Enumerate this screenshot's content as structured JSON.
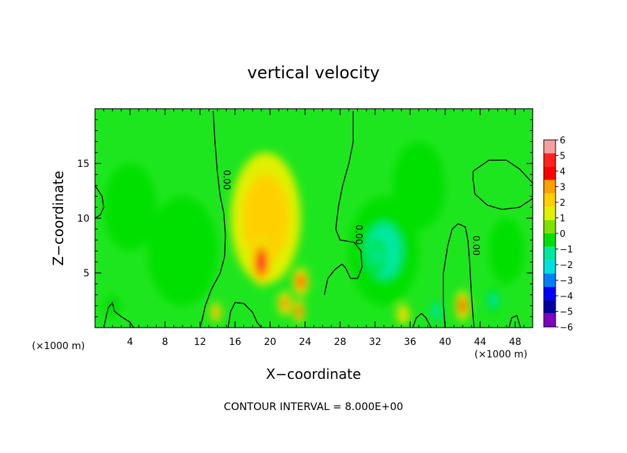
{
  "chart_data": {
    "type": "heatmap",
    "title": "vertical velocity",
    "xlabel": "X−coordinate",
    "ylabel": "Z−coordinate",
    "x_units_left": "(×1000 m)",
    "x_units_right": "(×1000 m)",
    "footer": "CONTOUR INTERVAL = 8.000E+00",
    "xlim": [
      0,
      50
    ],
    "ylim": [
      0,
      20
    ],
    "x_ticks": [
      4,
      8,
      12,
      16,
      20,
      24,
      28,
      32,
      36,
      40,
      44,
      48
    ],
    "x_tick_labels": [
      "4",
      "8",
      "12",
      "16",
      "20",
      "24",
      "28",
      "32",
      "36",
      "40",
      "44",
      "48"
    ],
    "y_ticks": [
      5,
      10,
      15
    ],
    "y_tick_labels": [
      "5",
      "10",
      "15"
    ],
    "contour_label": "0.00",
    "colorbar": {
      "levels": [
        6,
        5,
        4,
        3,
        2,
        1,
        0,
        -1,
        -2,
        -3,
        -4,
        -5,
        -6
      ],
      "labels": [
        "6",
        "5",
        "4",
        "3",
        "2",
        "1",
        "0",
        "−1",
        "−2",
        "−3",
        "−4",
        "−5",
        "−6"
      ],
      "colors": [
        "#f4a0a0",
        "#ff2020",
        "#ff0000",
        "#ffa000",
        "#ffd000",
        "#e0f000",
        "#80e000",
        "#00e000",
        "#00e8a0",
        "#00e0e0",
        "#0080ff",
        "#0000ff",
        "#0000a0",
        "#8000c0"
      ]
    },
    "field": {
      "background_color": "#1ee61e",
      "features": [
        {
          "x": 19,
          "z": 6,
          "value": 5.5,
          "sx": 1.2,
          "sz": 2.2
        },
        {
          "x": 19.5,
          "z": 10,
          "value": 2.2,
          "sx": 4,
          "sz": 6
        },
        {
          "x": 23.5,
          "z": 4.2,
          "value": 5,
          "sx": 0.9,
          "sz": 1.3
        },
        {
          "x": 23.3,
          "z": 1.5,
          "value": 4.5,
          "sx": 0.6,
          "sz": 1.1
        },
        {
          "x": 21.7,
          "z": 2.2,
          "value": 4,
          "sx": 0.8,
          "sz": 1.1
        },
        {
          "x": 13.8,
          "z": 1.4,
          "value": 3.5,
          "sx": 0.6,
          "sz": 0.9
        },
        {
          "x": 42,
          "z": 2,
          "value": 4.5,
          "sx": 0.8,
          "sz": 1.4
        },
        {
          "x": 35.2,
          "z": 1.2,
          "value": 2.2,
          "sx": 0.7,
          "sz": 0.9
        },
        {
          "x": 33,
          "z": 7,
          "value": -1.5,
          "sx": 4,
          "sz": 5
        },
        {
          "x": 32.3,
          "z": 6.5,
          "value": -1.8,
          "sx": 0.9,
          "sz": 1.6
        },
        {
          "x": 39,
          "z": 1.5,
          "value": -2.2,
          "sx": 0.7,
          "sz": 1.1
        },
        {
          "x": 45.5,
          "z": 2.5,
          "value": -1.6,
          "sx": 0.9,
          "sz": 1.2
        },
        {
          "x": 10,
          "z": 7,
          "value": -0.9,
          "sx": 4,
          "sz": 5
        },
        {
          "x": 4,
          "z": 11,
          "value": -0.5,
          "sx": 3,
          "sz": 4
        },
        {
          "x": 47,
          "z": 7,
          "value": -1,
          "sx": 2,
          "sz": 3
        },
        {
          "x": 37,
          "z": 13,
          "value": -0.6,
          "sx": 3,
          "sz": 4
        },
        {
          "x": 2,
          "z": 2,
          "value": -1,
          "sx": 1,
          "sz": 1
        }
      ]
    },
    "zero_contours": [
      [
        [
          13.5,
          19.8
        ],
        [
          13.7,
          17
        ],
        [
          14,
          14
        ],
        [
          14.3,
          12
        ],
        [
          14.7,
          10.5
        ],
        [
          14.9,
          8.5
        ],
        [
          14.8,
          6.5
        ],
        [
          14.3,
          5
        ],
        [
          13.3,
          3.5
        ],
        [
          12.6,
          2
        ],
        [
          12.2,
          0.6
        ],
        [
          12,
          0
        ]
      ],
      [
        [
          29.5,
          19.8
        ],
        [
          29.5,
          17
        ],
        [
          29,
          15
        ],
        [
          28.3,
          13
        ],
        [
          27.8,
          11
        ],
        [
          27.5,
          9
        ],
        [
          28,
          8
        ],
        [
          29.6,
          7.8
        ],
        [
          30.4,
          7
        ],
        [
          30.5,
          5.5
        ],
        [
          30,
          4.5
        ],
        [
          29.2,
          4.5
        ],
        [
          28.6,
          5.5
        ],
        [
          28.2,
          5.8
        ],
        [
          27.4,
          5.3
        ],
        [
          26.6,
          4.5
        ],
        [
          26.2,
          3
        ]
      ],
      [
        [
          43.2,
          14.3
        ],
        [
          45,
          15.3
        ],
        [
          47,
          15.3
        ],
        [
          48.5,
          14.5
        ],
        [
          50,
          13.2
        ],
        [
          50,
          11.8
        ],
        [
          48.5,
          11
        ],
        [
          46.5,
          10.8
        ],
        [
          44.8,
          11.2
        ],
        [
          43.4,
          12.2
        ],
        [
          43.2,
          13.5
        ],
        [
          43.2,
          14.3
        ]
      ],
      [
        [
          0,
          13
        ],
        [
          0.8,
          12
        ],
        [
          1,
          11
        ],
        [
          0.6,
          10.3
        ],
        [
          0,
          10
        ]
      ],
      [
        [
          1,
          0
        ],
        [
          1.5,
          1.8
        ],
        [
          2,
          2.3
        ],
        [
          2.2,
          1.5
        ],
        [
          3,
          1
        ],
        [
          4,
          0.5
        ],
        [
          4.4,
          0
        ]
      ],
      [
        [
          15.2,
          0
        ],
        [
          15.5,
          1.5
        ],
        [
          16,
          2.3
        ],
        [
          17,
          2.2
        ],
        [
          18,
          1.4
        ],
        [
          18.5,
          0.5
        ],
        [
          19,
          0
        ]
      ],
      [
        [
          40,
          0
        ],
        [
          39.8,
          2
        ],
        [
          39.8,
          5
        ],
        [
          40.3,
          7.5
        ],
        [
          40.8,
          9
        ],
        [
          41.5,
          9.5
        ],
        [
          42.3,
          9.2
        ],
        [
          42.6,
          8
        ],
        [
          42.8,
          6
        ],
        [
          43,
          3
        ],
        [
          43.3,
          0
        ]
      ],
      [
        [
          47.3,
          0
        ],
        [
          47.6,
          0.9
        ],
        [
          48.2,
          1.1
        ],
        [
          48.6,
          0
        ]
      ],
      [
        [
          36.3,
          0
        ],
        [
          36.7,
          0.9
        ],
        [
          37.3,
          1.3
        ],
        [
          37.8,
          0.9
        ],
        [
          38.4,
          0
        ]
      ]
    ]
  }
}
